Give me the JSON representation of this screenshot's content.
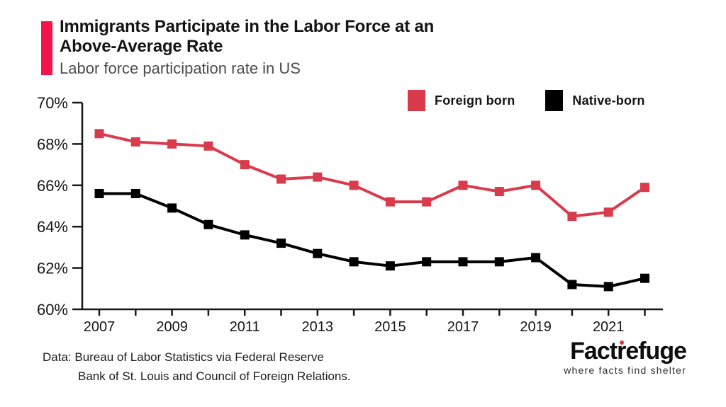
{
  "header": {
    "title_line1": "Immigrants Participate in the Labor Force at an",
    "title_line2": "Above-Average Rate",
    "subtitle": "Labor force participation rate in US",
    "accent_color": "#f5134b"
  },
  "legend": [
    {
      "label": "Foreign born",
      "color": "#d93b4c"
    },
    {
      "label": "Native-born",
      "color": "#000000"
    }
  ],
  "chart_data": {
    "type": "line",
    "title": "Labor force participation rate in US",
    "x": [
      2007,
      2008,
      2009,
      2010,
      2011,
      2012,
      2013,
      2014,
      2015,
      2016,
      2017,
      2018,
      2019,
      2020,
      2021,
      2022
    ],
    "series": [
      {
        "name": "Foreign born",
        "color": "#d93b4c",
        "values": [
          68.5,
          68.1,
          68.0,
          67.9,
          67.0,
          66.3,
          66.4,
          66.0,
          65.2,
          65.2,
          66.0,
          65.7,
          66.0,
          64.5,
          64.7,
          65.9
        ]
      },
      {
        "name": "Native-born",
        "color": "#000000",
        "values": [
          65.6,
          65.6,
          64.9,
          64.1,
          63.6,
          63.2,
          62.7,
          62.3,
          62.1,
          62.3,
          62.3,
          62.3,
          62.5,
          61.2,
          61.1,
          61.5
        ]
      }
    ],
    "ylim": [
      60,
      70
    ],
    "y_ticks": [
      60,
      62,
      64,
      66,
      68,
      70
    ],
    "y_tick_suffix": "%",
    "x_tick_labels": [
      2007,
      2009,
      2011,
      2013,
      2015,
      2017,
      2019,
      2021
    ],
    "grid": false,
    "marker": "square",
    "legend_position": "top-right",
    "axis_color": "#161616"
  },
  "footer": {
    "source_line1": "Data: Bureau of Labor Statistics via Federal Reserve",
    "source_line2": "Bank of St. Louis and Council of Foreign Relations.",
    "logo_pre": "Fact",
    "logo_r": "r",
    "logo_post": "efuge",
    "tagline": "where facts find shelter",
    "logo_dot_color": "#e03247"
  }
}
